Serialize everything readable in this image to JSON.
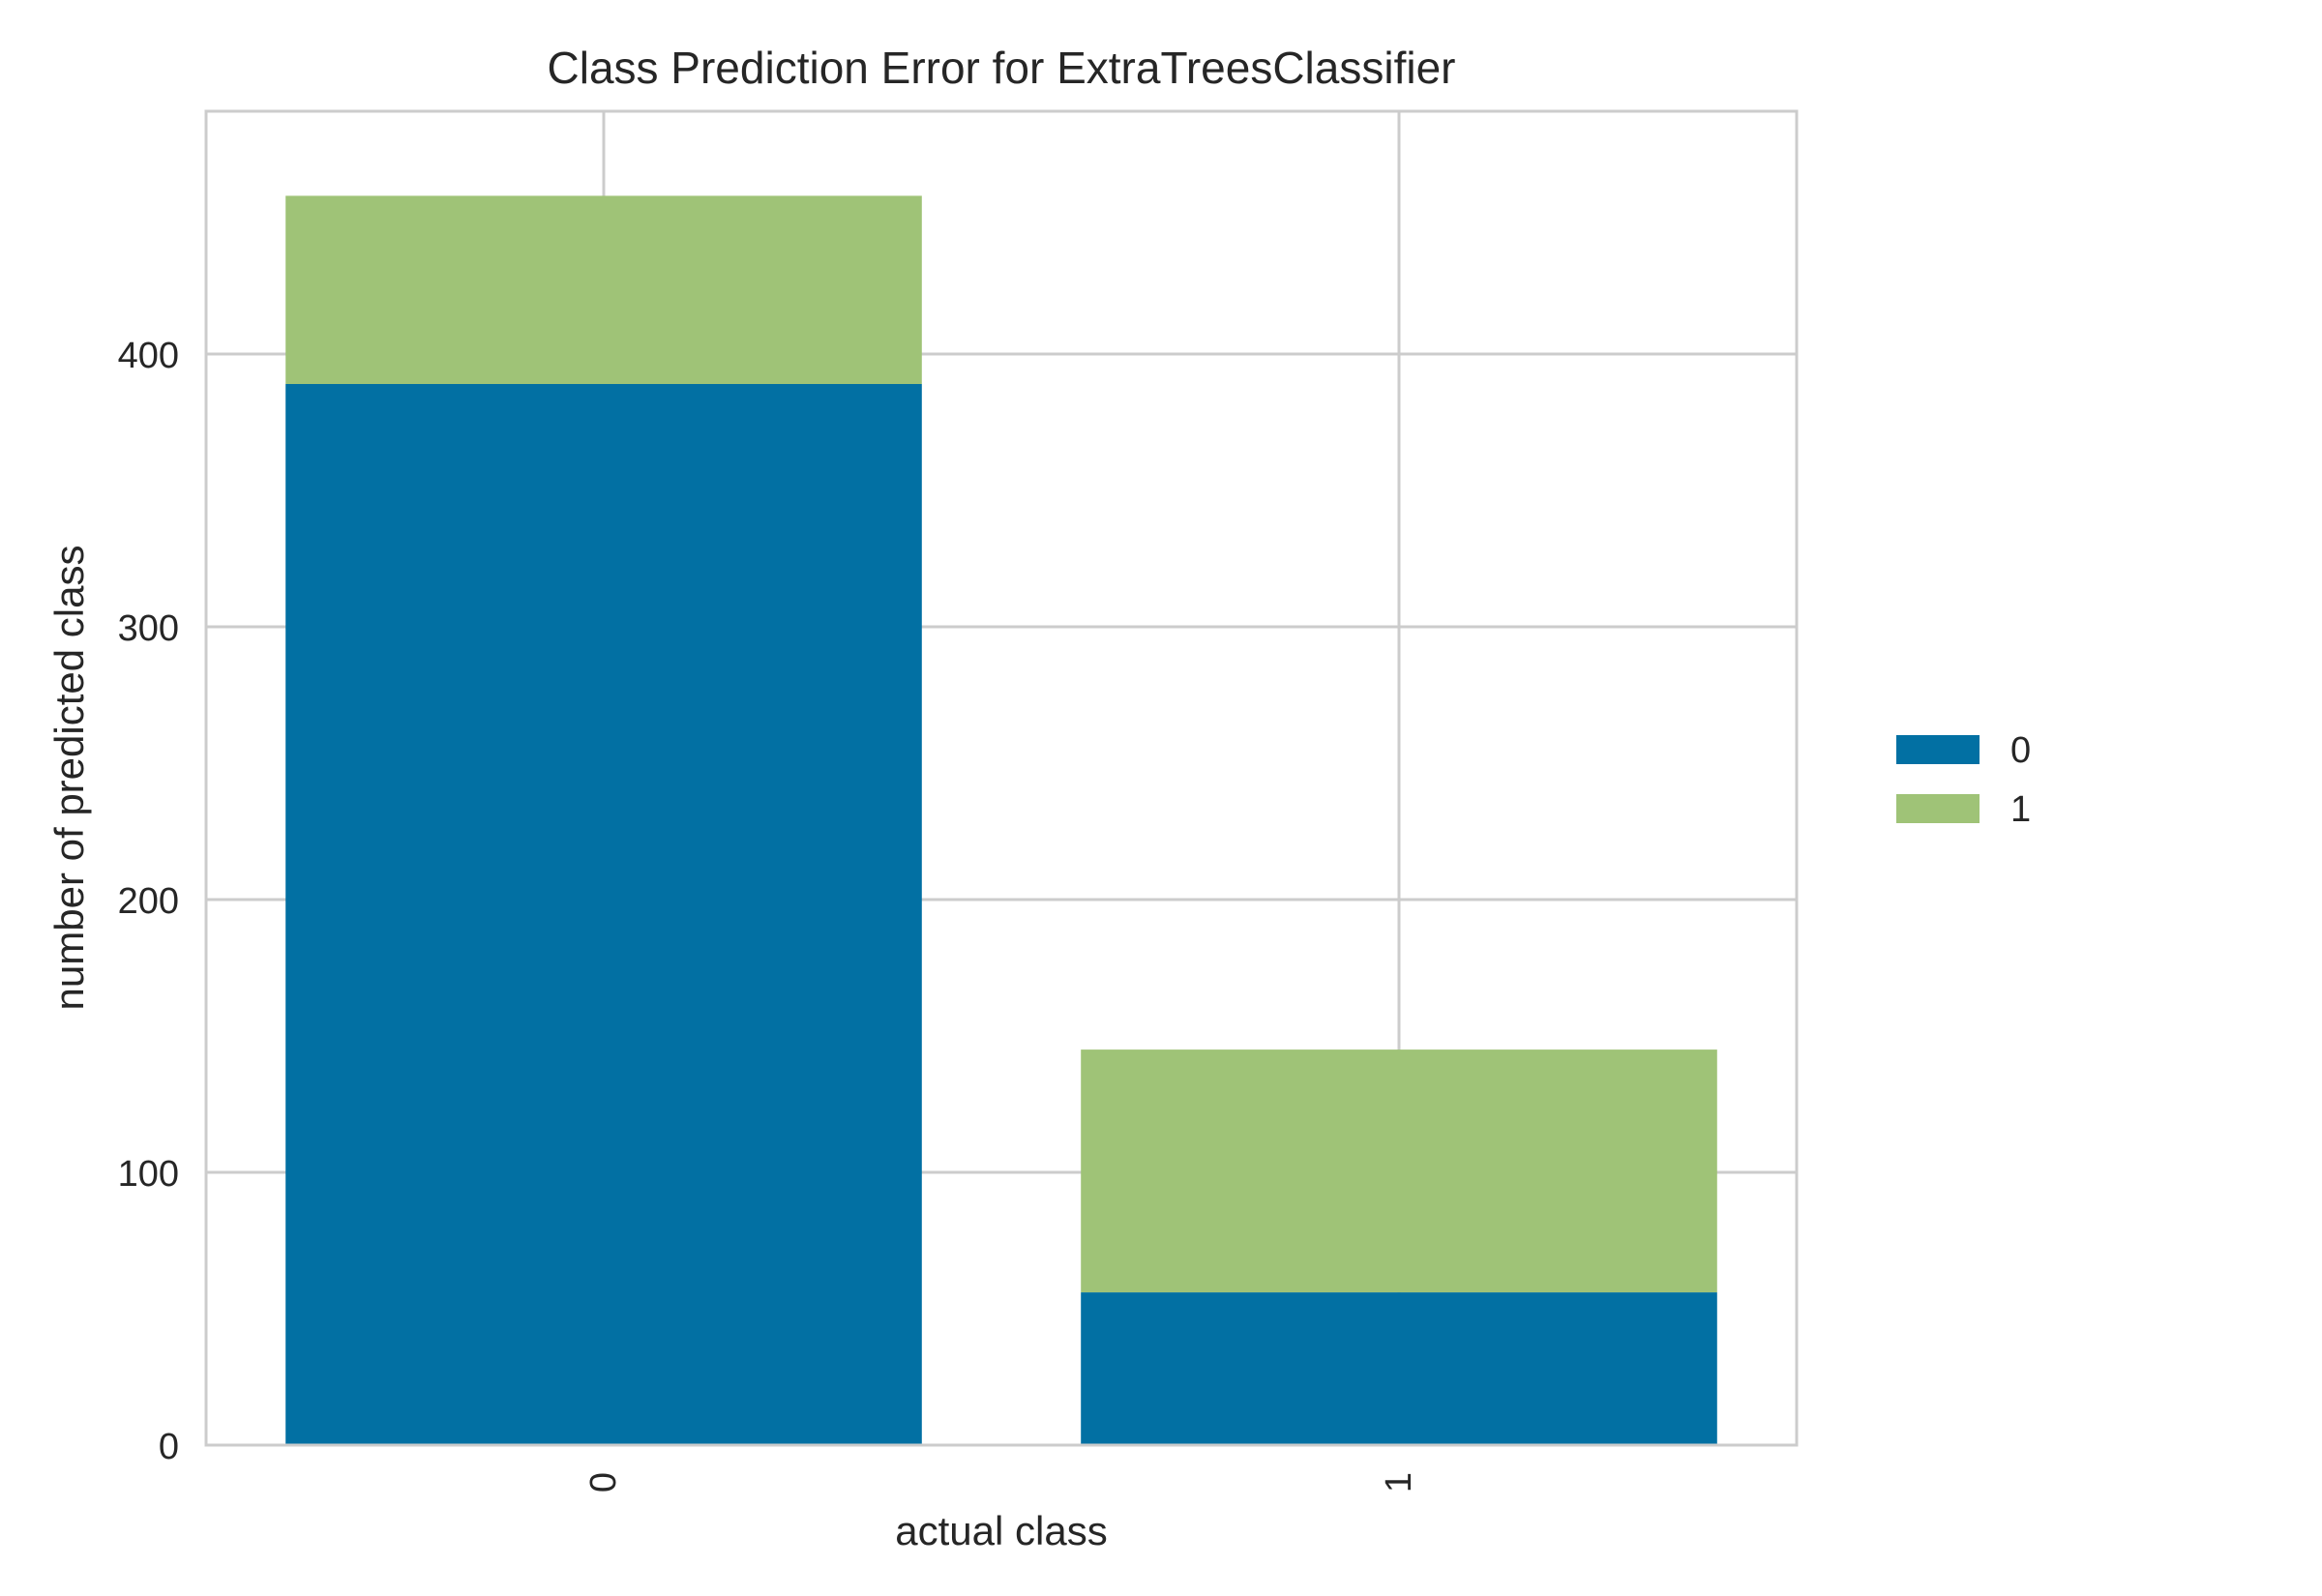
{
  "chart_data": {
    "type": "bar",
    "stacked": true,
    "title": "Class Prediction Error for ExtraTreesClassifier",
    "xlabel": "actual class",
    "ylabel": "number of predicted class",
    "categories": [
      "0",
      "1"
    ],
    "series": [
      {
        "name": "0",
        "color": "#0270a3",
        "values": [
          389,
          56
        ]
      },
      {
        "name": "1",
        "color": "#9fc377",
        "values": [
          69,
          89
        ]
      }
    ],
    "ylim": [
      0,
      489
    ],
    "yticks": [
      0,
      100,
      200,
      300,
      400
    ],
    "grid": true,
    "legend": "right"
  }
}
